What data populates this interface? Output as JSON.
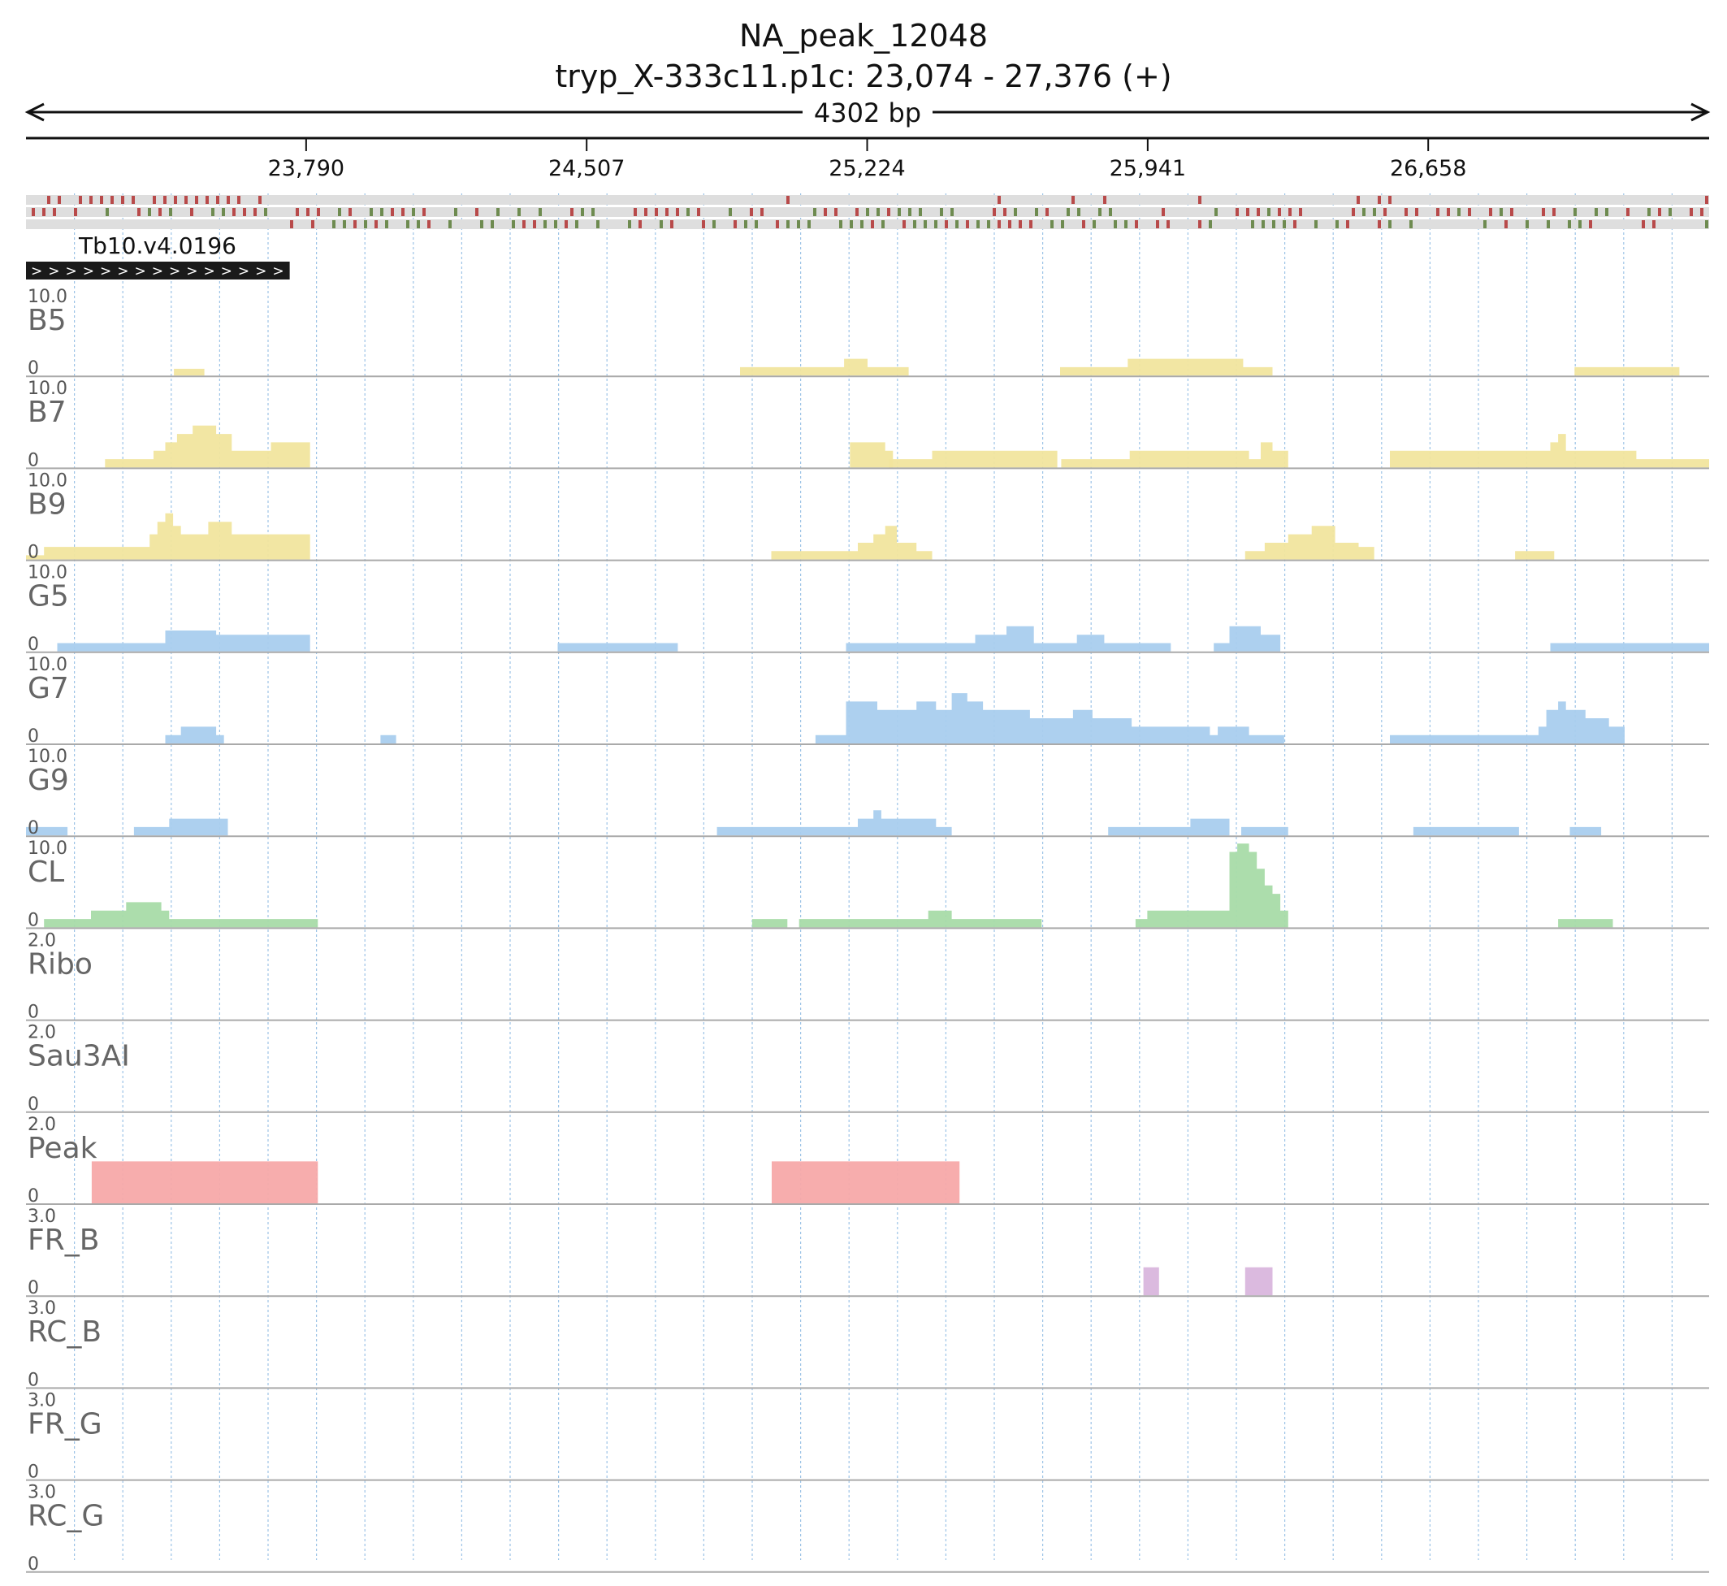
{
  "header": {
    "title": "NA_peak_12048",
    "locus": "tryp_X-333c11.p1c: 23,074 - 27,376 (+)",
    "span_label": "4302 bp"
  },
  "colors": {
    "yellow": "#f1e59e",
    "blue": "#a9cdee",
    "green": "#a8dba8",
    "red": "#f7a9a9",
    "purple": "#d9b6dd",
    "gene": "#1a1a1a",
    "grid": "#9cc3e6",
    "track_label": "#666666"
  },
  "chart_data": {
    "type": "area",
    "title": "NA_peak_12048",
    "subtitle": "tryp_X-333c11.p1c: 23,074 - 27,376 (+)",
    "xlim": [
      23074,
      27376
    ],
    "x_ticks": [
      {
        "pos": 23790,
        "label": "23,790"
      },
      {
        "pos": 24507,
        "label": "24,507"
      },
      {
        "pos": 25224,
        "label": "25,224"
      },
      {
        "pos": 25941,
        "label": "25,941"
      },
      {
        "pos": 26658,
        "label": "26,658"
      }
    ],
    "grid_vertical": true,
    "gene": {
      "name": "Tb10.v4.0196",
      "start": 23074,
      "end": 23748,
      "strand": "+",
      "strand_glyph": ">"
    },
    "series": [
      {
        "name": "B5",
        "ymax": 10.0,
        "ymax_label": "10.0",
        "ymin_label": "0",
        "color": "yellow",
        "segments": [
          {
            "x": [
              23452,
              23530
            ],
            "y": [
              0.8,
              0.8
            ]
          },
          {
            "x": [
              24899,
              25160,
              25165,
              25220,
              25225,
              25280,
              25285,
              25330
            ],
            "y": [
              1.0,
              1.0,
              2.0,
              2.0,
              1.0,
              1.0,
              1.0,
              1.0
            ]
          },
          {
            "x": [
              25717,
              25880,
              25890,
              25930,
              25935,
              26180,
              26185,
              26260
            ],
            "y": [
              1.0,
              1.0,
              2.0,
              2.0,
              2.0,
              2.0,
              1.0,
              1.0
            ]
          },
          {
            "x": [
              27032,
              27300
            ],
            "y": [
              1.0,
              1.0
            ]
          }
        ]
      },
      {
        "name": "B7",
        "ymax": 10.0,
        "ymax_label": "10.0",
        "ymin_label": "0",
        "color": "yellow",
        "segments": [
          {
            "x": [
              23276,
              23330,
              23400,
              23430,
              23460,
              23500,
              23530,
              23560,
              23600,
              23640,
              23700,
              23800
            ],
            "y": [
              1.0,
              1.0,
              2.0,
              3.0,
              4.0,
              5.0,
              5.0,
              4.0,
              2.0,
              2.0,
              3.0,
              3.0
            ]
          },
          {
            "x": [
              25180,
              25260,
              25270,
              25290
            ],
            "y": [
              3.0,
              3.0,
              2.0,
              1.0
            ]
          },
          {
            "x": [
              25280,
              25360,
              25390,
              25710
            ],
            "y": [
              1.0,
              1.0,
              2.0,
              1.0
            ]
          },
          {
            "x": [
              25720,
              25810,
              25895,
              26200,
              26230,
              26260,
              26300
            ],
            "y": [
              1.0,
              1.0,
              2.0,
              1.0,
              3.0,
              2.0,
              1.0
            ]
          },
          {
            "x": [
              26560,
              26950,
              26970,
              26990,
              27010,
              27050,
              27190,
              27376
            ],
            "y": [
              2.0,
              2.0,
              3.0,
              4.0,
              2.0,
              2.0,
              1.0,
              1.0
            ]
          }
        ]
      },
      {
        "name": "B9",
        "ymax": 10.0,
        "ymax_label": "10.0",
        "ymin_label": "0",
        "color": "yellow",
        "segments": [
          {
            "x": [
              23074,
              23120,
              23360,
              23390,
              23410,
              23430,
              23450,
              23470,
              23540,
              23600,
              23800
            ],
            "y": [
              0.5,
              1.5,
              1.5,
              3.0,
              4.5,
              5.5,
              4.0,
              3.0,
              4.5,
              3.0,
              3.0
            ]
          },
          {
            "x": [
              24979,
              25110,
              25200,
              25240,
              25270,
              25300,
              25350,
              25390
            ],
            "y": [
              1.0,
              1.0,
              2.0,
              3.0,
              4.0,
              2.0,
              1.0,
              1.0
            ]
          },
          {
            "x": [
              26190,
              26240,
              26300,
              26360,
              26420,
              26480,
              26520
            ],
            "y": [
              1.0,
              2.0,
              3.0,
              4.0,
              2.0,
              1.5,
              1.0
            ]
          },
          {
            "x": [
              26880,
              26980
            ],
            "y": [
              1.0,
              1.0
            ]
          }
        ]
      },
      {
        "name": "G5",
        "ymax": 10.0,
        "ymax_label": "10.0",
        "ymin_label": "0",
        "color": "blue",
        "segments": [
          {
            "x": [
              23154,
              23410,
              23430,
              23530,
              23560,
              23800
            ],
            "y": [
              1.0,
              1.0,
              2.5,
              2.5,
              2.0,
              1.5
            ]
          },
          {
            "x": [
              24433,
              24740
            ],
            "y": [
              1.0,
              1.0
            ]
          },
          {
            "x": [
              25170,
              25440,
              25500,
              25560,
              25580,
              25650,
              25760,
              25830,
              26000
            ],
            "y": [
              1.0,
              1.0,
              2.0,
              2.0,
              3.0,
              1.0,
              2.0,
              1.0,
              1.0
            ]
          },
          {
            "x": [
              26110,
              26150,
              26230,
              26280
            ],
            "y": [
              1.0,
              3.0,
              2.0,
              1.0
            ]
          },
          {
            "x": [
              26970,
              27030,
              27060,
              27376
            ],
            "y": [
              1.0,
              1.0,
              1.0,
              1.0
            ]
          }
        ]
      },
      {
        "name": "G7",
        "ymax": 10.0,
        "ymax_label": "10.0",
        "ymin_label": "0",
        "color": "blue",
        "segments": [
          {
            "x": [
              23430,
              23470,
              23560,
              23580
            ],
            "y": [
              1.0,
              2.0,
              1.0,
              1.0
            ]
          },
          {
            "x": [
              23980,
              24020
            ],
            "y": [
              1.0,
              1.0
            ]
          },
          {
            "x": [
              25092,
              25170,
              25250,
              25280,
              25350,
              25400,
              25440,
              25480,
              25520,
              25640,
              25750,
              25800,
              25900,
              26100,
              26120,
              26200,
              26290
            ],
            "y": [
              1.0,
              5.0,
              4.0,
              4.0,
              5.0,
              4.0,
              6.0,
              5.0,
              4.0,
              3.0,
              4.0,
              3.0,
              2.0,
              1.0,
              2.0,
              1.0,
              1.0
            ]
          },
          {
            "x": [
              26560,
              26910,
              26940,
              26960,
              26990,
              27010,
              27060,
              27120,
              27160
            ],
            "y": [
              1.0,
              1.0,
              2.0,
              4.0,
              5.0,
              4.0,
              3.0,
              2.0,
              1.0
            ]
          }
        ]
      },
      {
        "name": "G9",
        "ymax": 10.0,
        "ymax_label": "10.0",
        "ymin_label": "0",
        "color": "blue",
        "segments": [
          {
            "x": [
              23074,
              23180
            ],
            "y": [
              1.0,
              1.0
            ]
          },
          {
            "x": [
              23350,
              23430,
              23440,
              23590
            ],
            "y": [
              1.0,
              1.0,
              2.0,
              1.0
            ]
          },
          {
            "x": [
              24840,
              25200,
              25240,
              25260,
              25300,
              25400,
              25440
            ],
            "y": [
              1.0,
              2.0,
              3.0,
              2.0,
              2.0,
              1.0,
              1.0
            ]
          },
          {
            "x": [
              25840,
              26050,
              26150
            ],
            "y": [
              1.0,
              2.0,
              1.0
            ]
          },
          {
            "x": [
              26180,
              26300
            ],
            "y": [
              1.0,
              1.0
            ]
          },
          {
            "x": [
              26620,
              26890
            ],
            "y": [
              1.0,
              1.0
            ]
          },
          {
            "x": [
              27020,
              27100
            ],
            "y": [
              1.0,
              1.0
            ]
          }
        ]
      },
      {
        "name": "CL",
        "ymax": 10.0,
        "ymax_label": "10.0",
        "ymin_label": "0",
        "color": "green",
        "segments": [
          {
            "x": [
              23120,
              23240,
              23330,
              23420,
              23440,
              23820
            ],
            "y": [
              1.0,
              2.0,
              3.0,
              2.0,
              1.0,
              1.0
            ]
          },
          {
            "x": [
              24930,
              25020
            ],
            "y": [
              1.0,
              1.0
            ]
          },
          {
            "x": [
              25050,
              25230,
              25260,
              25310,
              25350,
              25380,
              25440,
              25540,
              25670
            ],
            "y": [
              1.0,
              1.0,
              1.0,
              1.0,
              1.0,
              2.0,
              1.0,
              1.0,
              1.0
            ]
          },
          {
            "x": [
              25910,
              25940,
              26140,
              26150,
              26170,
              26200,
              26220,
              26240,
              26260,
              26280,
              26300
            ],
            "y": [
              1.0,
              2.0,
              2.0,
              9.0,
              10.0,
              9.0,
              7.0,
              5.0,
              4.0,
              2.0,
              1.0
            ]
          },
          {
            "x": [
              26990,
              27130
            ],
            "y": [
              1.0,
              1.0
            ]
          }
        ]
      },
      {
        "name": "Ribo",
        "ymax": 2.0,
        "ymax_label": "2.0",
        "ymin_label": "0",
        "color": "blue",
        "segments": []
      },
      {
        "name": "Sau3AI",
        "ymax": 2.0,
        "ymax_label": "2.0",
        "ymin_label": "0",
        "color": "blue",
        "segments": []
      },
      {
        "name": "Peak",
        "ymax": 2.0,
        "ymax_label": "2.0",
        "ymin_label": "0",
        "color": "red",
        "segments": [
          {
            "x": [
              23242,
              23820
            ],
            "y": [
              1.0,
              1.0
            ]
          },
          {
            "x": [
              24980,
              25460
            ],
            "y": [
              1.0,
              1.0
            ]
          }
        ]
      },
      {
        "name": "FR_B",
        "ymax": 3.0,
        "ymax_label": "3.0",
        "ymin_label": "0",
        "color": "purple",
        "segments": [
          {
            "x": [
              25930,
              25970
            ],
            "y": [
              1.0,
              1.0
            ]
          },
          {
            "x": [
              26190,
              26260
            ],
            "y": [
              1.0,
              1.0
            ]
          }
        ]
      },
      {
        "name": "RC_B",
        "ymax": 3.0,
        "ymax_label": "3.0",
        "ymin_label": "0",
        "color": "purple",
        "segments": []
      },
      {
        "name": "FR_G",
        "ymax": 3.0,
        "ymax_label": "3.0",
        "ymin_label": "0",
        "color": "purple",
        "segments": []
      },
      {
        "name": "RC_G",
        "ymax": 3.0,
        "ymax_label": "3.0",
        "ymin_label": "0",
        "color": "purple",
        "segments": []
      }
    ]
  }
}
